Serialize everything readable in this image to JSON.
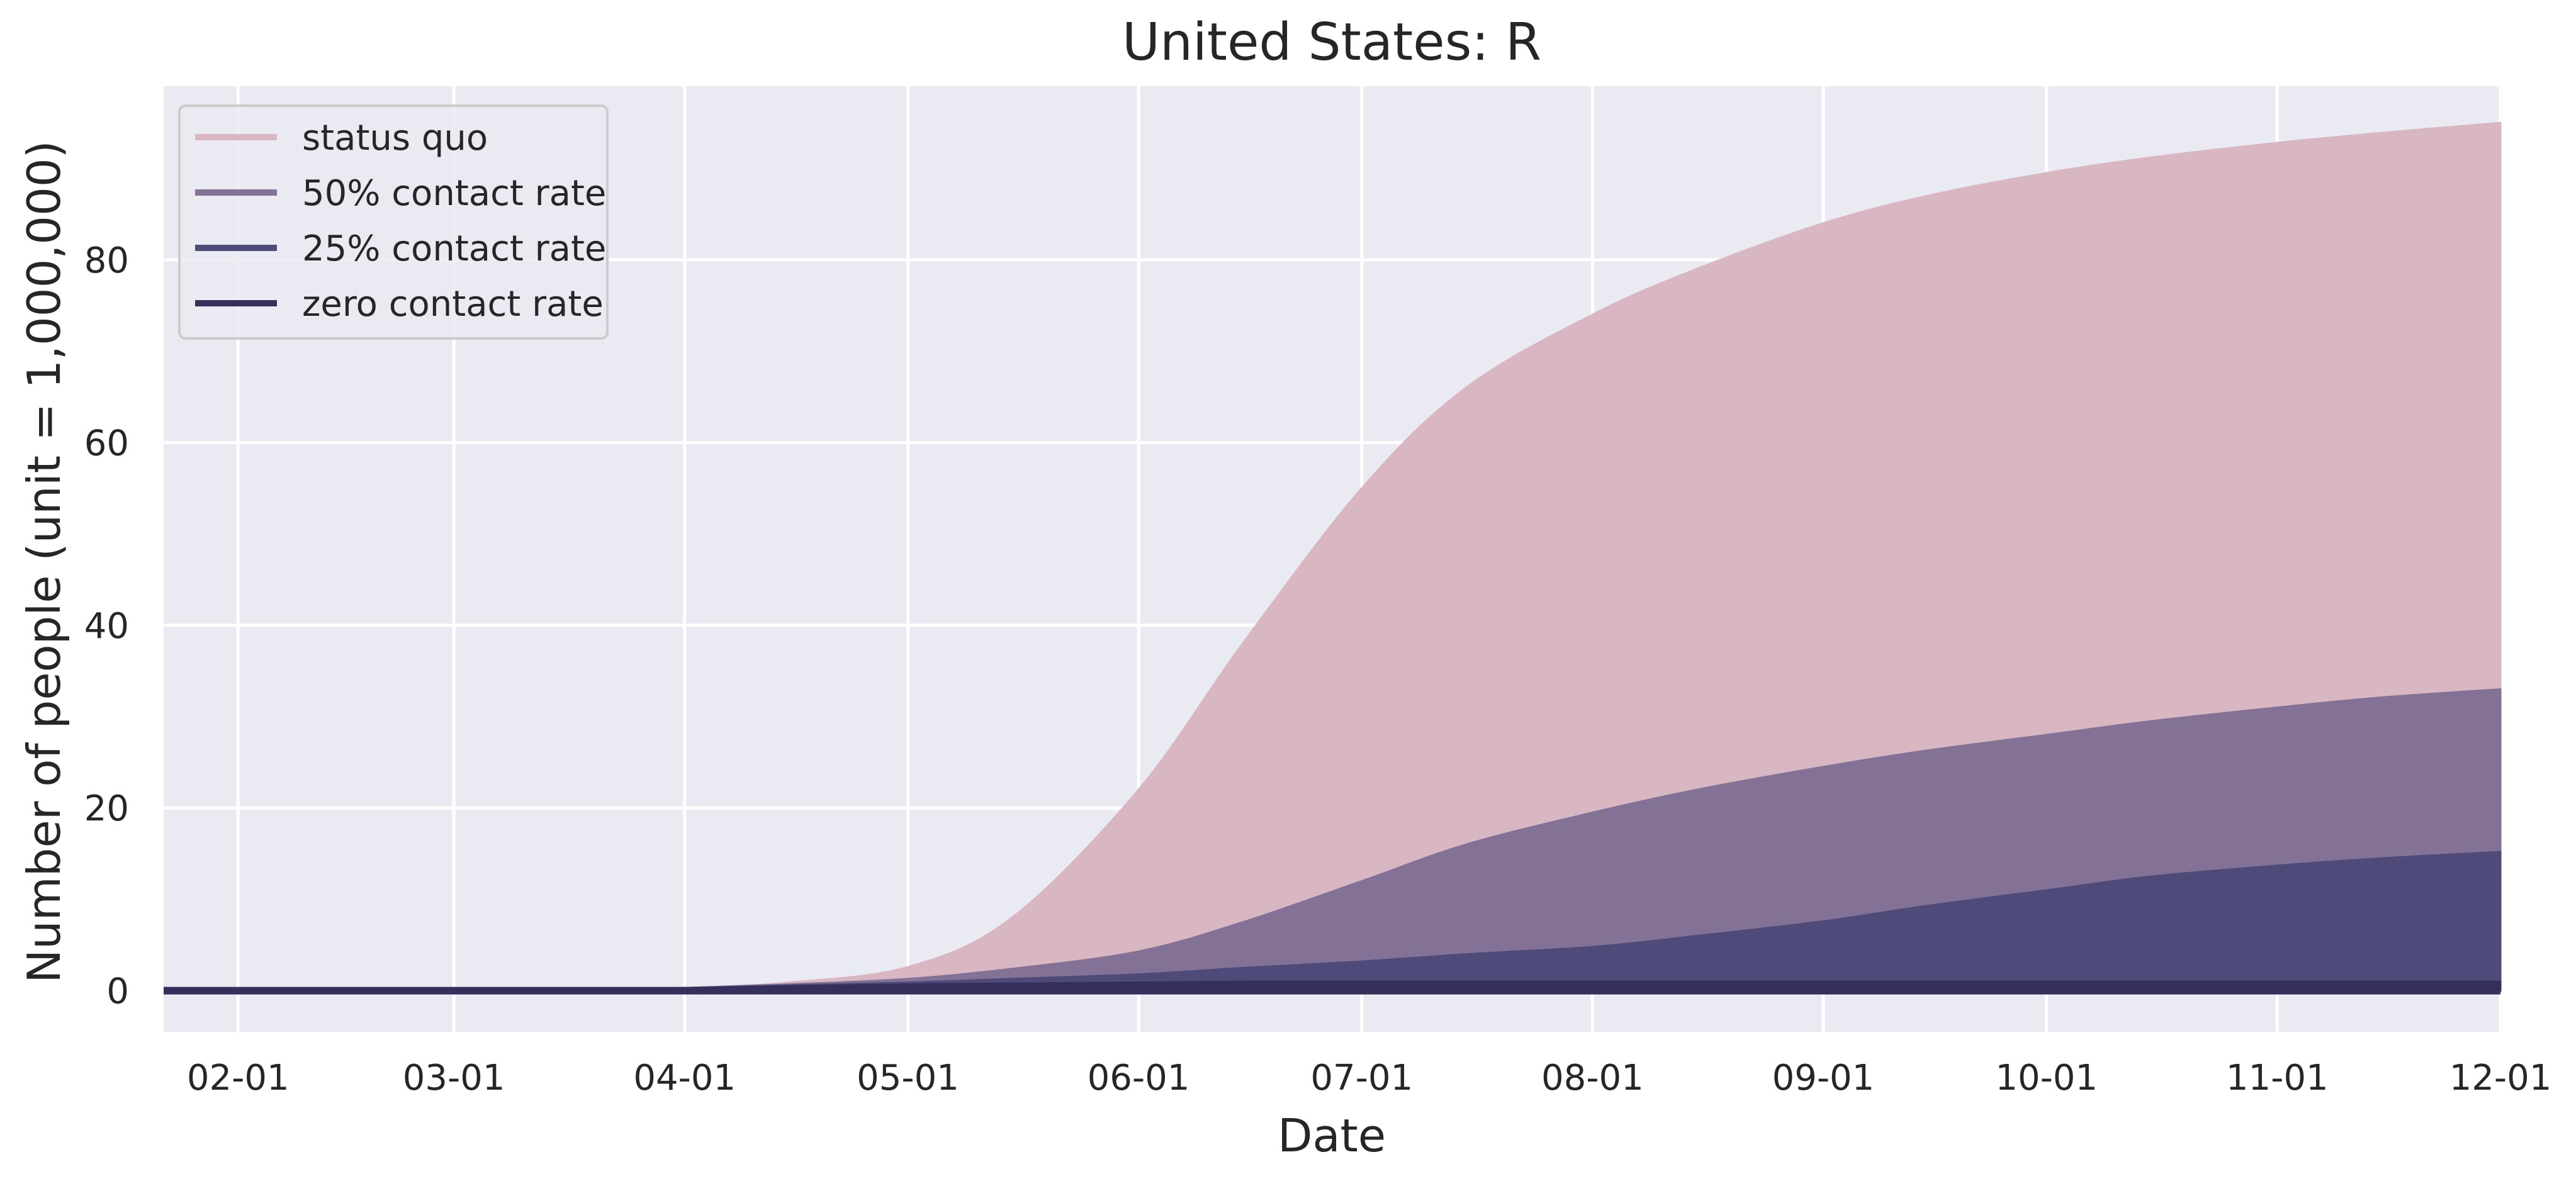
{
  "chart_data": {
    "type": "area",
    "title": "United States: R",
    "xlabel": "Date",
    "ylabel": "Number of people (unit = 1,000,000)",
    "xlim": [
      "2020-01-22",
      "2020-12-01"
    ],
    "ylim": [
      -4.5,
      99
    ],
    "grid": true,
    "legend_position": "top-left",
    "x_ticks": [
      "2020-02-01",
      "2020-03-01",
      "2020-04-01",
      "2020-05-01",
      "2020-06-01",
      "2020-07-01",
      "2020-08-01",
      "2020-09-01",
      "2020-10-01",
      "2020-11-01",
      "2020-12-01"
    ],
    "x_tick_labels": [
      "02-01",
      "03-01",
      "04-01",
      "05-01",
      "06-01",
      "07-01",
      "08-01",
      "09-01",
      "10-01",
      "11-01",
      "12-01"
    ],
    "y_ticks": [
      0,
      20,
      40,
      60,
      80
    ],
    "y_tick_labels": [
      "0",
      "20",
      "40",
      "60",
      "80"
    ],
    "x": [
      "2020-01-22",
      "2020-02-01",
      "2020-03-01",
      "2020-03-20",
      "2020-04-01",
      "2020-04-15",
      "2020-05-01",
      "2020-05-15",
      "2020-06-01",
      "2020-06-15",
      "2020-07-01",
      "2020-07-15",
      "2020-08-01",
      "2020-08-15",
      "2020-09-01",
      "2020-09-15",
      "2020-10-01",
      "2020-10-15",
      "2020-11-01",
      "2020-11-15",
      "2020-12-01"
    ],
    "series": [
      {
        "name": "status quo",
        "color": "#d8b7c2",
        "values": [
          0,
          0,
          0,
          0.1,
          0.3,
          0.9,
          2.6,
          8,
          22,
          38,
          55,
          66,
          74,
          79,
          84,
          87,
          89.5,
          91.2,
          92.8,
          93.9,
          95
        ]
      },
      {
        "name": "50% contact rate",
        "color": "#837295",
        "values": [
          0,
          0,
          0,
          0.1,
          0.3,
          0.7,
          1.3,
          2.4,
          4.3,
          7.5,
          12,
          16,
          19.5,
          22,
          24.5,
          26.3,
          28,
          29.5,
          31,
          32.1,
          33
        ]
      },
      {
        "name": "25% contact rate",
        "color": "#4e4b7a",
        "values": [
          0,
          0,
          0,
          0.1,
          0.3,
          0.6,
          0.9,
          1.3,
          1.8,
          2.5,
          3.2,
          4,
          4.8,
          6,
          7.6,
          9.3,
          11,
          12.5,
          13.7,
          14.5,
          15.2
        ]
      },
      {
        "name": "zero contact rate",
        "color": "#352f5c",
        "values": [
          0,
          0,
          0,
          0.1,
          0.3,
          0.5,
          0.7,
          0.8,
          0.9,
          1.0,
          1.0,
          1.0,
          1.0,
          1.0,
          1.0,
          1.0,
          1.0,
          1.0,
          1.0,
          1.0,
          1.0
        ]
      }
    ],
    "colors": {
      "background": "#eaeaf2",
      "grid": "#ffffff",
      "text": "#262626"
    }
  }
}
